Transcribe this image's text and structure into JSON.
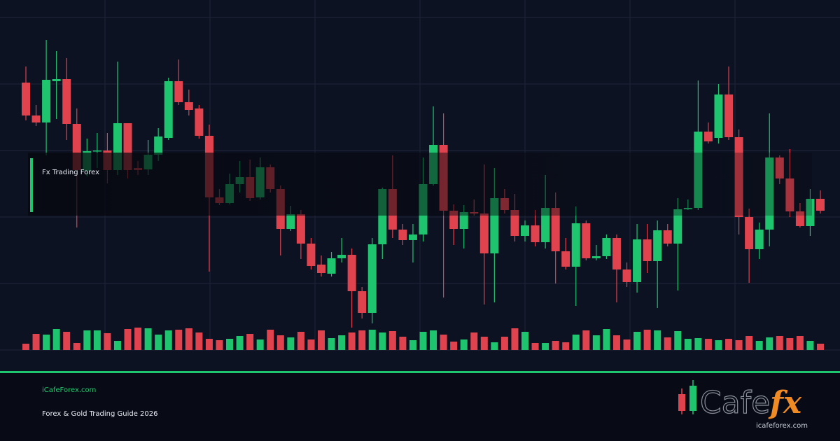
{
  "chart_data": {
    "type": "candlestick",
    "open": [
      382,
      335,
      325,
      384,
      387,
      323,
      256,
      284,
      285,
      257,
      324,
      260,
      258,
      279,
      303,
      384,
      354,
      345,
      306,
      218,
      210,
      237,
      247,
      218,
      261,
      230,
      173,
      194,
      152,
      122,
      109,
      131,
      136,
      84,
      53,
      151,
      230,
      172,
      157,
      165,
      237,
      293,
      199,
      173,
      197,
      195,
      138,
      217,
      200,
      163,
      178,
      154,
      203,
      141,
      119,
      181,
      131,
      134,
      160,
      115,
      97,
      158,
      127,
      171,
      152,
      201,
      203,
      312,
      303,
      365,
      304,
      190,
      144,
      172,
      275,
      245,
      198,
      177,
      216
    ],
    "high": [
      405,
      350,
      443,
      427,
      417,
      345,
      302,
      310,
      310,
      412,
      324,
      270,
      300,
      317,
      389,
      415,
      372,
      350,
      322,
      230,
      252,
      270,
      272,
      275,
      265,
      235,
      206,
      200,
      160,
      135,
      140,
      160,
      145,
      90,
      160,
      232,
      278,
      180,
      180,
      275,
      348,
      338,
      208,
      207,
      215,
      265,
      260,
      230,
      223,
      185,
      200,
      250,
      225,
      160,
      205,
      185,
      150,
      165,
      165,
      125,
      180,
      180,
      185,
      180,
      217,
      215,
      385,
      325,
      380,
      405,
      315,
      202,
      182,
      338,
      278,
      287,
      210,
      230,
      228
    ],
    "low": [
      328,
      320,
      278,
      330,
      300,
      175,
      248,
      260,
      238,
      250,
      245,
      250,
      250,
      270,
      300,
      350,
      335,
      302,
      112,
      207,
      208,
      225,
      213,
      215,
      225,
      135,
      170,
      130,
      115,
      105,
      105,
      125,
      32,
      45,
      38,
      130,
      160,
      150,
      125,
      155,
      235,
      75,
      150,
      145,
      192,
      65,
      68,
      195,
      155,
      155,
      148,
      145,
      95,
      115,
      63,
      128,
      128,
      130,
      68,
      90,
      82,
      110,
      60,
      148,
      85,
      200,
      200,
      295,
      295,
      300,
      165,
      96,
      130,
      148,
      237,
      190,
      175,
      163,
      195
    ],
    "close": [
      335,
      325,
      386,
      387,
      323,
      257,
      284,
      285,
      257,
      324,
      257,
      257,
      279,
      305,
      384,
      354,
      343,
      306,
      218,
      210,
      237,
      247,
      217,
      261,
      230,
      173,
      194,
      152,
      120,
      110,
      131,
      136,
      84,
      53,
      151,
      230,
      172,
      157,
      165,
      237,
      293,
      199,
      173,
      197,
      195,
      138,
      217,
      200,
      163,
      178,
      154,
      203,
      141,
      119,
      181,
      131,
      134,
      160,
      115,
      97,
      158,
      127,
      171,
      152,
      201,
      203,
      312,
      298,
      365,
      304,
      190,
      144,
      172,
      275,
      245,
      198,
      177,
      216,
      199
    ],
    "volume": [
      9,
      23,
      22,
      30,
      26,
      10,
      28,
      28,
      24,
      13,
      30,
      32,
      31,
      22,
      28,
      29,
      31,
      25,
      16,
      14,
      16,
      20,
      23,
      15,
      29,
      21,
      18,
      26,
      15,
      28,
      17,
      21,
      25,
      28,
      29,
      25,
      27,
      19,
      14,
      26,
      28,
      22,
      12,
      15,
      25,
      19,
      11,
      19,
      31,
      26,
      10,
      10,
      13,
      11,
      22,
      28,
      21,
      30,
      21,
      15,
      26,
      29,
      28,
      18,
      27,
      16,
      17,
      16,
      14,
      16,
      14,
      20,
      13,
      18,
      20,
      17,
      20,
      13,
      9
    ],
    "ylim": [
      0,
      500
    ],
    "yticks": [
      0,
      95,
      190,
      285,
      380,
      475
    ],
    "volume_lim": [
      0,
      40
    ],
    "grid": true,
    "up_color": "#1fc46e",
    "down_color": "#e0424e"
  },
  "overlay": {
    "label": "Fx Trading Forex"
  },
  "footer": {
    "site": "iCafeForex.com",
    "subtitle": "Forex & Gold Trading Guide 2026"
  },
  "logo": {
    "word": "Cafe",
    "accent": "fx",
    "url": "icafeforex.com"
  }
}
